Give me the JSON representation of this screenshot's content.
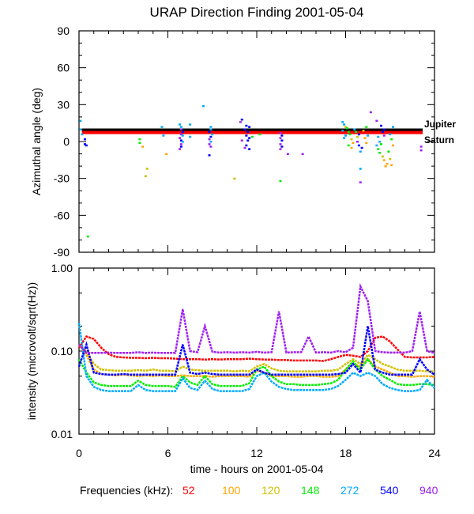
{
  "chart_data": [
    {
      "type": "scatter",
      "title": "URAP Direction Finding  2001-05-04",
      "ylabel": "Azimuthal angle (deg)",
      "xlim": [
        0,
        24
      ],
      "ylim": [
        -90,
        90
      ],
      "yticks": [
        "90",
        "60",
        "30",
        "0",
        "-30",
        "-60",
        "-90"
      ],
      "ytick_values": [
        90,
        60,
        30,
        0,
        -30,
        -60,
        -90
      ],
      "reference_lines": [
        {
          "name": "Jupiter",
          "color": "#000000",
          "t_range": [
            0.2,
            23.2
          ],
          "angle": 9.0
        },
        {
          "name": "Saturn",
          "color": "#ff0000",
          "t_range": [
            0.2,
            23.2
          ],
          "angle": 7.0
        }
      ],
      "points_format": [
        "hours",
        "angle_deg",
        "frequency_index"
      ],
      "points": [
        [
          0.1,
          17,
          4
        ],
        [
          0.1,
          10,
          4
        ],
        [
          0.2,
          6,
          4
        ],
        [
          0.4,
          2,
          5
        ],
        [
          0.4,
          -2,
          5
        ],
        [
          0.5,
          -3,
          5
        ],
        [
          0.6,
          -77,
          3
        ],
        [
          4.1,
          2,
          3
        ],
        [
          4.1,
          -1,
          3
        ],
        [
          4.3,
          -4,
          1
        ],
        [
          4.6,
          -22,
          2
        ],
        [
          4.5,
          -28,
          2
        ],
        [
          5.6,
          12,
          4
        ],
        [
          5.7,
          5,
          4
        ],
        [
          5.9,
          -10,
          1
        ],
        [
          7.5,
          14,
          4
        ],
        [
          7.5,
          4,
          4
        ],
        [
          8.4,
          29,
          4
        ],
        [
          10.5,
          -30,
          2
        ],
        [
          12.2,
          6,
          3
        ],
        [
          13.6,
          -32,
          3
        ],
        [
          14.1,
          -10,
          6
        ],
        [
          15.1,
          -10,
          6
        ],
        [
          19.7,
          24,
          6
        ],
        [
          19.0,
          -22,
          4
        ],
        [
          19.0,
          -33,
          6
        ],
        [
          23.1,
          -4,
          6
        ],
        [
          23.1,
          -7,
          6
        ],
        [
          6.8,
          14,
          4
        ],
        [
          6.9,
          12,
          4
        ],
        [
          6.9,
          10,
          6
        ],
        [
          7.0,
          8,
          5
        ],
        [
          6.9,
          6,
          6
        ],
        [
          7.0,
          5,
          4
        ],
        [
          6.8,
          3,
          6
        ],
        [
          6.9,
          1,
          5
        ],
        [
          7.0,
          0,
          4
        ],
        [
          6.9,
          -2,
          6
        ],
        [
          6.9,
          -4,
          5
        ],
        [
          6.8,
          -6,
          6
        ],
        [
          8.9,
          12,
          4
        ],
        [
          8.9,
          10,
          4
        ],
        [
          8.8,
          8,
          5
        ],
        [
          9.0,
          6,
          4
        ],
        [
          8.9,
          4,
          5
        ],
        [
          8.8,
          2,
          6
        ],
        [
          8.9,
          0,
          4
        ],
        [
          8.8,
          -2,
          6
        ],
        [
          8.9,
          -4,
          6
        ],
        [
          8.8,
          -11,
          5
        ],
        [
          11.0,
          18,
          5
        ],
        [
          10.9,
          16,
          6
        ],
        [
          11.3,
          13,
          5
        ],
        [
          11.5,
          12,
          5
        ],
        [
          11.2,
          10,
          5
        ],
        [
          11.4,
          8,
          5
        ],
        [
          11.3,
          5,
          5
        ],
        [
          11.5,
          3,
          5
        ],
        [
          11.4,
          1,
          5
        ],
        [
          11.3,
          -3,
          5
        ],
        [
          11.2,
          -5,
          6
        ],
        [
          11.5,
          -6,
          5
        ],
        [
          11.7,
          4,
          3
        ],
        [
          11.0,
          1,
          6
        ],
        [
          13.6,
          7,
          6
        ],
        [
          13.7,
          5,
          5
        ],
        [
          13.6,
          3,
          6
        ],
        [
          13.7,
          1,
          5
        ],
        [
          13.6,
          -2,
          6
        ],
        [
          13.7,
          -4,
          5
        ],
        [
          13.6,
          -6,
          6
        ],
        [
          17.8,
          16,
          4
        ],
        [
          17.9,
          14,
          4
        ],
        [
          18.0,
          12,
          2
        ],
        [
          18.1,
          11,
          3
        ],
        [
          17.8,
          9,
          4
        ],
        [
          18.2,
          8,
          3
        ],
        [
          18.0,
          5,
          4
        ],
        [
          17.9,
          3,
          4
        ],
        [
          18.3,
          6,
          3
        ],
        [
          18.4,
          2,
          2
        ],
        [
          18.5,
          -1,
          1
        ],
        [
          18.2,
          -3,
          3
        ],
        [
          18.6,
          10,
          4
        ],
        [
          18.7,
          8,
          3
        ],
        [
          18.8,
          4,
          2
        ],
        [
          18.9,
          6,
          5
        ],
        [
          18.8,
          0,
          6
        ],
        [
          18.9,
          -3,
          5
        ],
        [
          19.0,
          -8,
          4
        ],
        [
          19.2,
          9,
          2
        ],
        [
          19.3,
          3,
          1
        ],
        [
          19.1,
          -5,
          5
        ],
        [
          19.4,
          12,
          3
        ],
        [
          19.5,
          5,
          4
        ],
        [
          19.4,
          -1,
          1
        ],
        [
          18.4,
          -5,
          1
        ],
        [
          20.1,
          17,
          6
        ],
        [
          20.4,
          13,
          5
        ],
        [
          20.6,
          10,
          5
        ],
        [
          20.5,
          8,
          5
        ],
        [
          20.6,
          5,
          6
        ],
        [
          20.2,
          4,
          4
        ],
        [
          20.3,
          0,
          4
        ],
        [
          20.1,
          -3,
          4
        ],
        [
          20.2,
          -6,
          3
        ],
        [
          20.3,
          -9,
          3
        ],
        [
          20.5,
          -12,
          2
        ],
        [
          20.6,
          -15,
          1
        ],
        [
          20.8,
          -18,
          1
        ],
        [
          21.0,
          -14,
          2
        ],
        [
          20.9,
          -8,
          3
        ],
        [
          21.1,
          2,
          3
        ],
        [
          21.0,
          6,
          4
        ],
        [
          21.2,
          -3,
          1
        ],
        [
          20.7,
          -20,
          1
        ],
        [
          20.4,
          -2,
          3
        ],
        [
          21.1,
          -19,
          1
        ],
        [
          21.2,
          12,
          4
        ]
      ]
    },
    {
      "type": "line",
      "ylabel": "intensity (microvolt/sqrt(Hz))",
      "xlabel": "time - hours on 2001-05-04",
      "xlim": [
        0,
        24
      ],
      "ylim": [
        0.01,
        1.0
      ],
      "yscale": "log",
      "yticks": [
        "1.00",
        "0.10",
        "0.01"
      ],
      "ytick_values": [
        1.0,
        0.1,
        0.01
      ],
      "xticks": [
        "0",
        "6",
        "12",
        "18",
        "24"
      ],
      "xtick_values": [
        0,
        6,
        12,
        18,
        24
      ],
      "x": [
        0,
        0.5,
        1,
        1.5,
        2,
        2.5,
        3,
        3.5,
        4,
        4.5,
        5,
        5.5,
        6,
        6.5,
        7,
        7.5,
        8,
        8.5,
        9,
        9.5,
        10,
        10.5,
        11,
        11.5,
        12,
        12.5,
        13,
        13.5,
        14,
        14.5,
        15,
        15.5,
        16,
        16.5,
        17,
        17.5,
        18,
        18.5,
        19,
        19.5,
        20,
        20.5,
        21,
        21.5,
        22,
        22.5,
        23,
        23.5,
        24
      ],
      "series": [
        {
          "name": "52",
          "color": "#ff0000",
          "values": [
            0.11,
            0.15,
            0.14,
            0.11,
            0.092,
            0.085,
            0.084,
            0.083,
            0.083,
            0.082,
            0.083,
            0.082,
            0.082,
            0.081,
            0.08,
            0.08,
            0.08,
            0.079,
            0.08,
            0.079,
            0.08,
            0.08,
            0.08,
            0.081,
            0.08,
            0.079,
            0.079,
            0.078,
            0.078,
            0.077,
            0.077,
            0.077,
            0.077,
            0.076,
            0.08,
            0.085,
            0.09,
            0.088,
            0.085,
            0.1,
            0.145,
            0.15,
            0.13,
            0.105,
            0.085,
            0.084,
            0.084,
            0.084,
            0.085
          ]
        },
        {
          "name": "100",
          "color": "#ffa500",
          "values": [
            0.12,
            0.09,
            0.06,
            0.053,
            0.052,
            0.051,
            0.052,
            0.051,
            0.05,
            0.051,
            0.05,
            0.051,
            0.05,
            0.05,
            0.051,
            0.05,
            0.05,
            0.05,
            0.049,
            0.05,
            0.05,
            0.05,
            0.05,
            0.049,
            0.058,
            0.055,
            0.05,
            0.05,
            0.05,
            0.049,
            0.049,
            0.05,
            0.05,
            0.049,
            0.049,
            0.05,
            0.06,
            0.07,
            0.065,
            0.08,
            0.065,
            0.06,
            0.055,
            0.05,
            0.05,
            0.049,
            0.05,
            0.05,
            0.049
          ]
        },
        {
          "name": "120",
          "color": "#d0c000",
          "values": [
            0.12,
            0.1,
            0.07,
            0.06,
            0.059,
            0.058,
            0.058,
            0.058,
            0.059,
            0.058,
            0.06,
            0.058,
            0.058,
            0.057,
            0.065,
            0.06,
            0.059,
            0.058,
            0.058,
            0.058,
            0.058,
            0.057,
            0.058,
            0.057,
            0.065,
            0.07,
            0.062,
            0.058,
            0.057,
            0.057,
            0.057,
            0.057,
            0.057,
            0.058,
            0.058,
            0.06,
            0.07,
            0.08,
            0.07,
            0.09,
            0.08,
            0.07,
            0.065,
            0.06,
            0.058,
            0.058,
            0.058,
            0.057,
            0.057
          ]
        },
        {
          "name": "148",
          "color": "#00ee00",
          "values": [
            0.08,
            0.055,
            0.042,
            0.039,
            0.038,
            0.038,
            0.038,
            0.038,
            0.044,
            0.039,
            0.038,
            0.038,
            0.038,
            0.037,
            0.05,
            0.042,
            0.039,
            0.05,
            0.04,
            0.038,
            0.038,
            0.038,
            0.038,
            0.041,
            0.06,
            0.065,
            0.05,
            0.043,
            0.04,
            0.04,
            0.039,
            0.039,
            0.039,
            0.04,
            0.041,
            0.045,
            0.06,
            0.075,
            0.06,
            0.08,
            0.06,
            0.05,
            0.045,
            0.04,
            0.039,
            0.039,
            0.04,
            0.04,
            0.039
          ]
        },
        {
          "name": "272",
          "color": "#00aaff",
          "values": [
            0.22,
            0.05,
            0.037,
            0.034,
            0.033,
            0.033,
            0.033,
            0.033,
            0.039,
            0.034,
            0.033,
            0.033,
            0.033,
            0.033,
            0.047,
            0.036,
            0.034,
            0.044,
            0.035,
            0.033,
            0.033,
            0.033,
            0.033,
            0.035,
            0.05,
            0.055,
            0.043,
            0.037,
            0.035,
            0.034,
            0.034,
            0.034,
            0.034,
            0.034,
            0.035,
            0.038,
            0.045,
            0.055,
            0.05,
            0.055,
            0.05,
            0.04,
            0.036,
            0.034,
            0.033,
            0.033,
            0.034,
            0.045,
            0.036
          ]
        },
        {
          "name": "540",
          "color": "#0000ff",
          "values": [
            0.065,
            0.12,
            0.055,
            0.053,
            0.052,
            0.052,
            0.053,
            0.052,
            0.052,
            0.052,
            0.052,
            0.052,
            0.052,
            0.052,
            0.12,
            0.055,
            0.053,
            0.055,
            0.053,
            0.052,
            0.052,
            0.052,
            0.052,
            0.052,
            0.06,
            0.055,
            0.052,
            0.052,
            0.052,
            0.052,
            0.052,
            0.052,
            0.052,
            0.052,
            0.052,
            0.053,
            0.055,
            0.07,
            0.055,
            0.2,
            0.06,
            0.055,
            0.052,
            0.052,
            0.052,
            0.052,
            0.08,
            0.06,
            0.052
          ]
        },
        {
          "name": "940",
          "color": "#a020f0",
          "values": [
            0.12,
            0.095,
            0.095,
            0.095,
            0.096,
            0.095,
            0.095,
            0.095,
            0.097,
            0.095,
            0.096,
            0.095,
            0.095,
            0.095,
            0.32,
            0.1,
            0.097,
            0.2,
            0.098,
            0.096,
            0.097,
            0.096,
            0.097,
            0.096,
            0.098,
            0.096,
            0.097,
            0.3,
            0.096,
            0.097,
            0.097,
            0.15,
            0.096,
            0.097,
            0.096,
            0.1,
            0.097,
            0.11,
            0.6,
            0.4,
            0.1,
            0.097,
            0.096,
            0.096,
            0.096,
            0.1,
            0.3,
            0.1,
            0.095
          ]
        }
      ]
    }
  ],
  "legend": {
    "label": "Frequencies (kHz):",
    "entries": [
      "52",
      "100",
      "120",
      "148",
      "272",
      "540",
      "940"
    ],
    "colors": [
      "#ff0000",
      "#ffa500",
      "#d0c000",
      "#00ee00",
      "#00aaff",
      "#0000ff",
      "#a020f0"
    ]
  }
}
